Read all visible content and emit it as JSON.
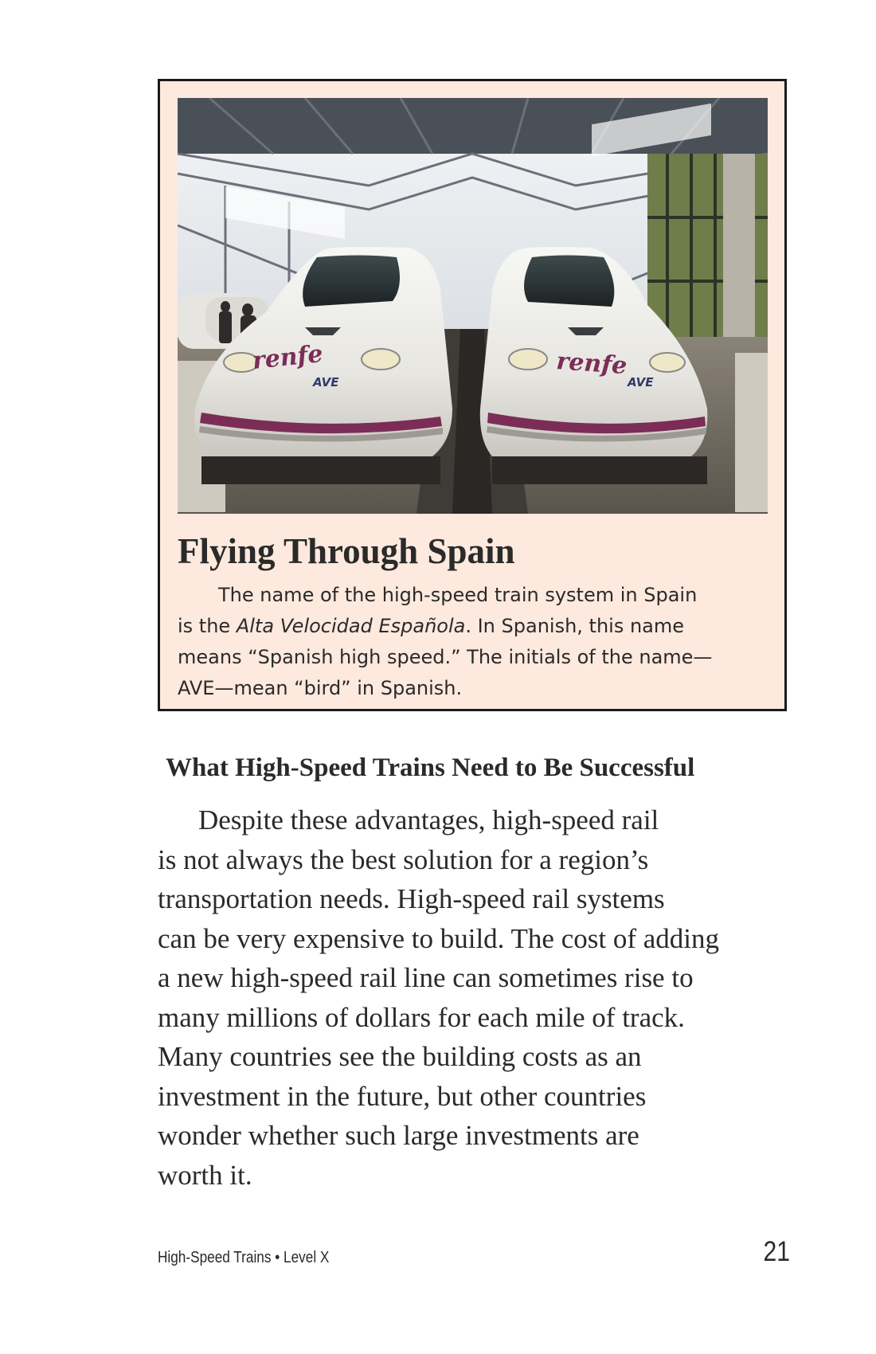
{
  "sidebar": {
    "photo_alt": "Two white AVE high-speed trains side by side in a station",
    "train_logo": "renfe",
    "train_sublogo": "AVE",
    "title": "Flying Through Spain",
    "lines": [
      {
        "before": "The name of the high-speed train system in Spain"
      },
      {
        "before": "is the ",
        "italic": "Alta Velocidad Española",
        "after": ". In Spanish, this name"
      },
      {
        "before": "means “Spanish high speed.” The initials of the name—"
      },
      {
        "before": "AVE—mean “bird” in Spanish."
      }
    ]
  },
  "section": {
    "heading": "What High-Speed Trains Need to Be Successful",
    "lines": [
      "Despite these advantages, high-speed rail",
      "is not always the best solution for a region’s",
      "transportation needs. High-speed rail systems",
      "can be very expensive to build. The cost of adding",
      "a new high-speed rail line can sometimes rise to",
      "many millions of dollars for each mile of track.",
      "Many countries see the building costs as an",
      "investment in the future, but other countries",
      "wonder whether such large investments are",
      "worth it."
    ]
  },
  "footer": {
    "book_info": "High-Speed Trains • Level X",
    "page_number": "21"
  }
}
